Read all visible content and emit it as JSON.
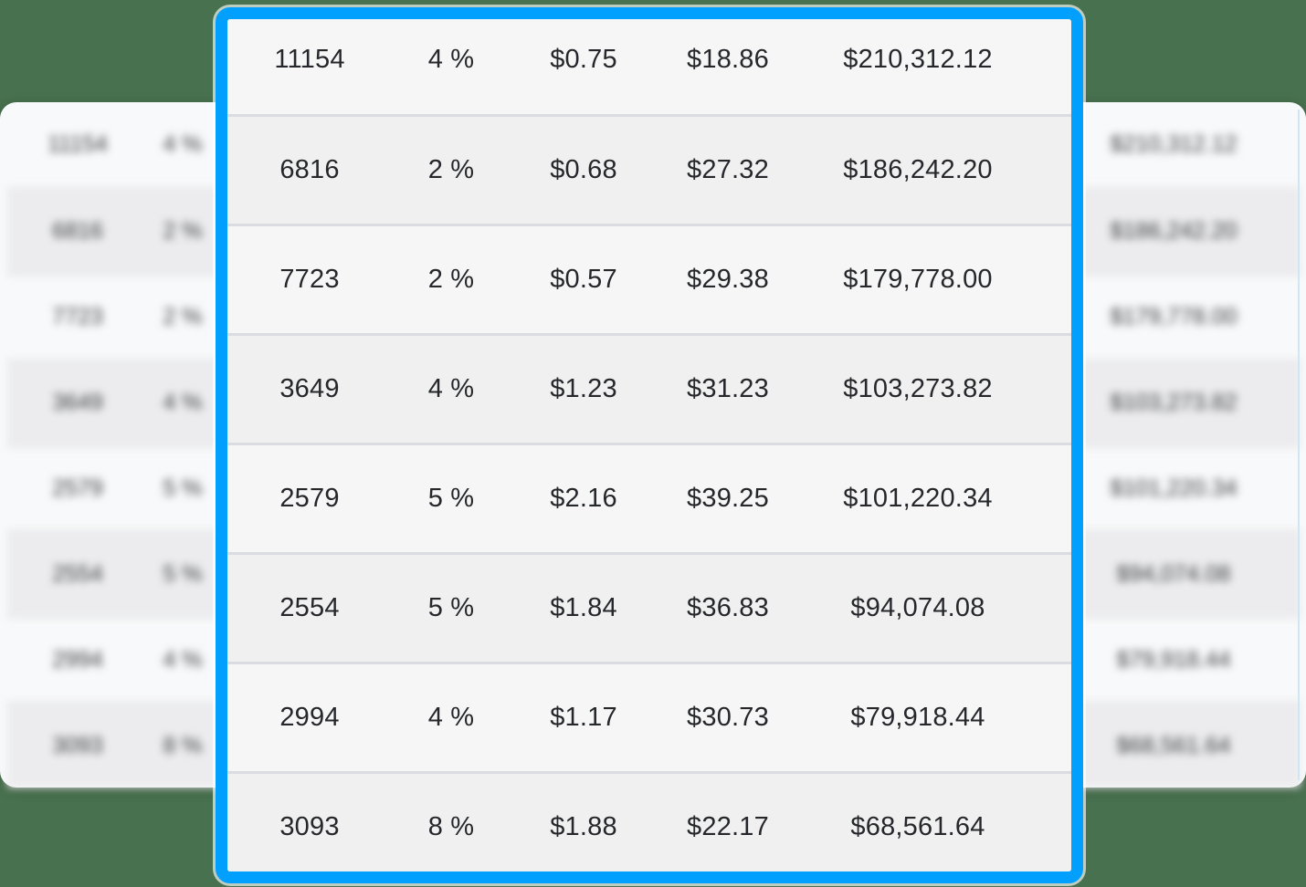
{
  "colors": {
    "canvas_green": "#48714F",
    "selection_blue": "#01A0FF",
    "row_stripe_light": "#F6F6F7",
    "row_stripe_gray": "#F0F0F1",
    "row_separator": "#D9DCE1",
    "card_background": "#F8F9FA"
  },
  "rows": [
    {
      "col1": "11154",
      "col2": "4 %",
      "col3": "$0.75",
      "col4": "$18.86",
      "col5": "$210,312.12"
    },
    {
      "col1": "6816",
      "col2": "2 %",
      "col3": "$0.68",
      "col4": "$27.32",
      "col5": "$186,242.20"
    },
    {
      "col1": "7723",
      "col2": "2 %",
      "col3": "$0.57",
      "col4": "$29.38",
      "col5": "$179,778.00"
    },
    {
      "col1": "3649",
      "col2": "4 %",
      "col3": "$1.23",
      "col4": "$31.23",
      "col5": "$103,273.82"
    },
    {
      "col1": "2579",
      "col2": "5 %",
      "col3": "$2.16",
      "col4": "$39.25",
      "col5": "$101,220.34"
    },
    {
      "col1": "2554",
      "col2": "5 %",
      "col3": "$1.84",
      "col4": "$36.83",
      "col5": "$94,074.08"
    },
    {
      "col1": "2994",
      "col2": "4 %",
      "col3": "$1.17",
      "col4": "$30.73",
      "col5": "$79,918.44"
    },
    {
      "col1": "3093",
      "col2": "8 %",
      "col3": "$1.88",
      "col4": "$22.17",
      "col5": "$68,561.64"
    }
  ]
}
